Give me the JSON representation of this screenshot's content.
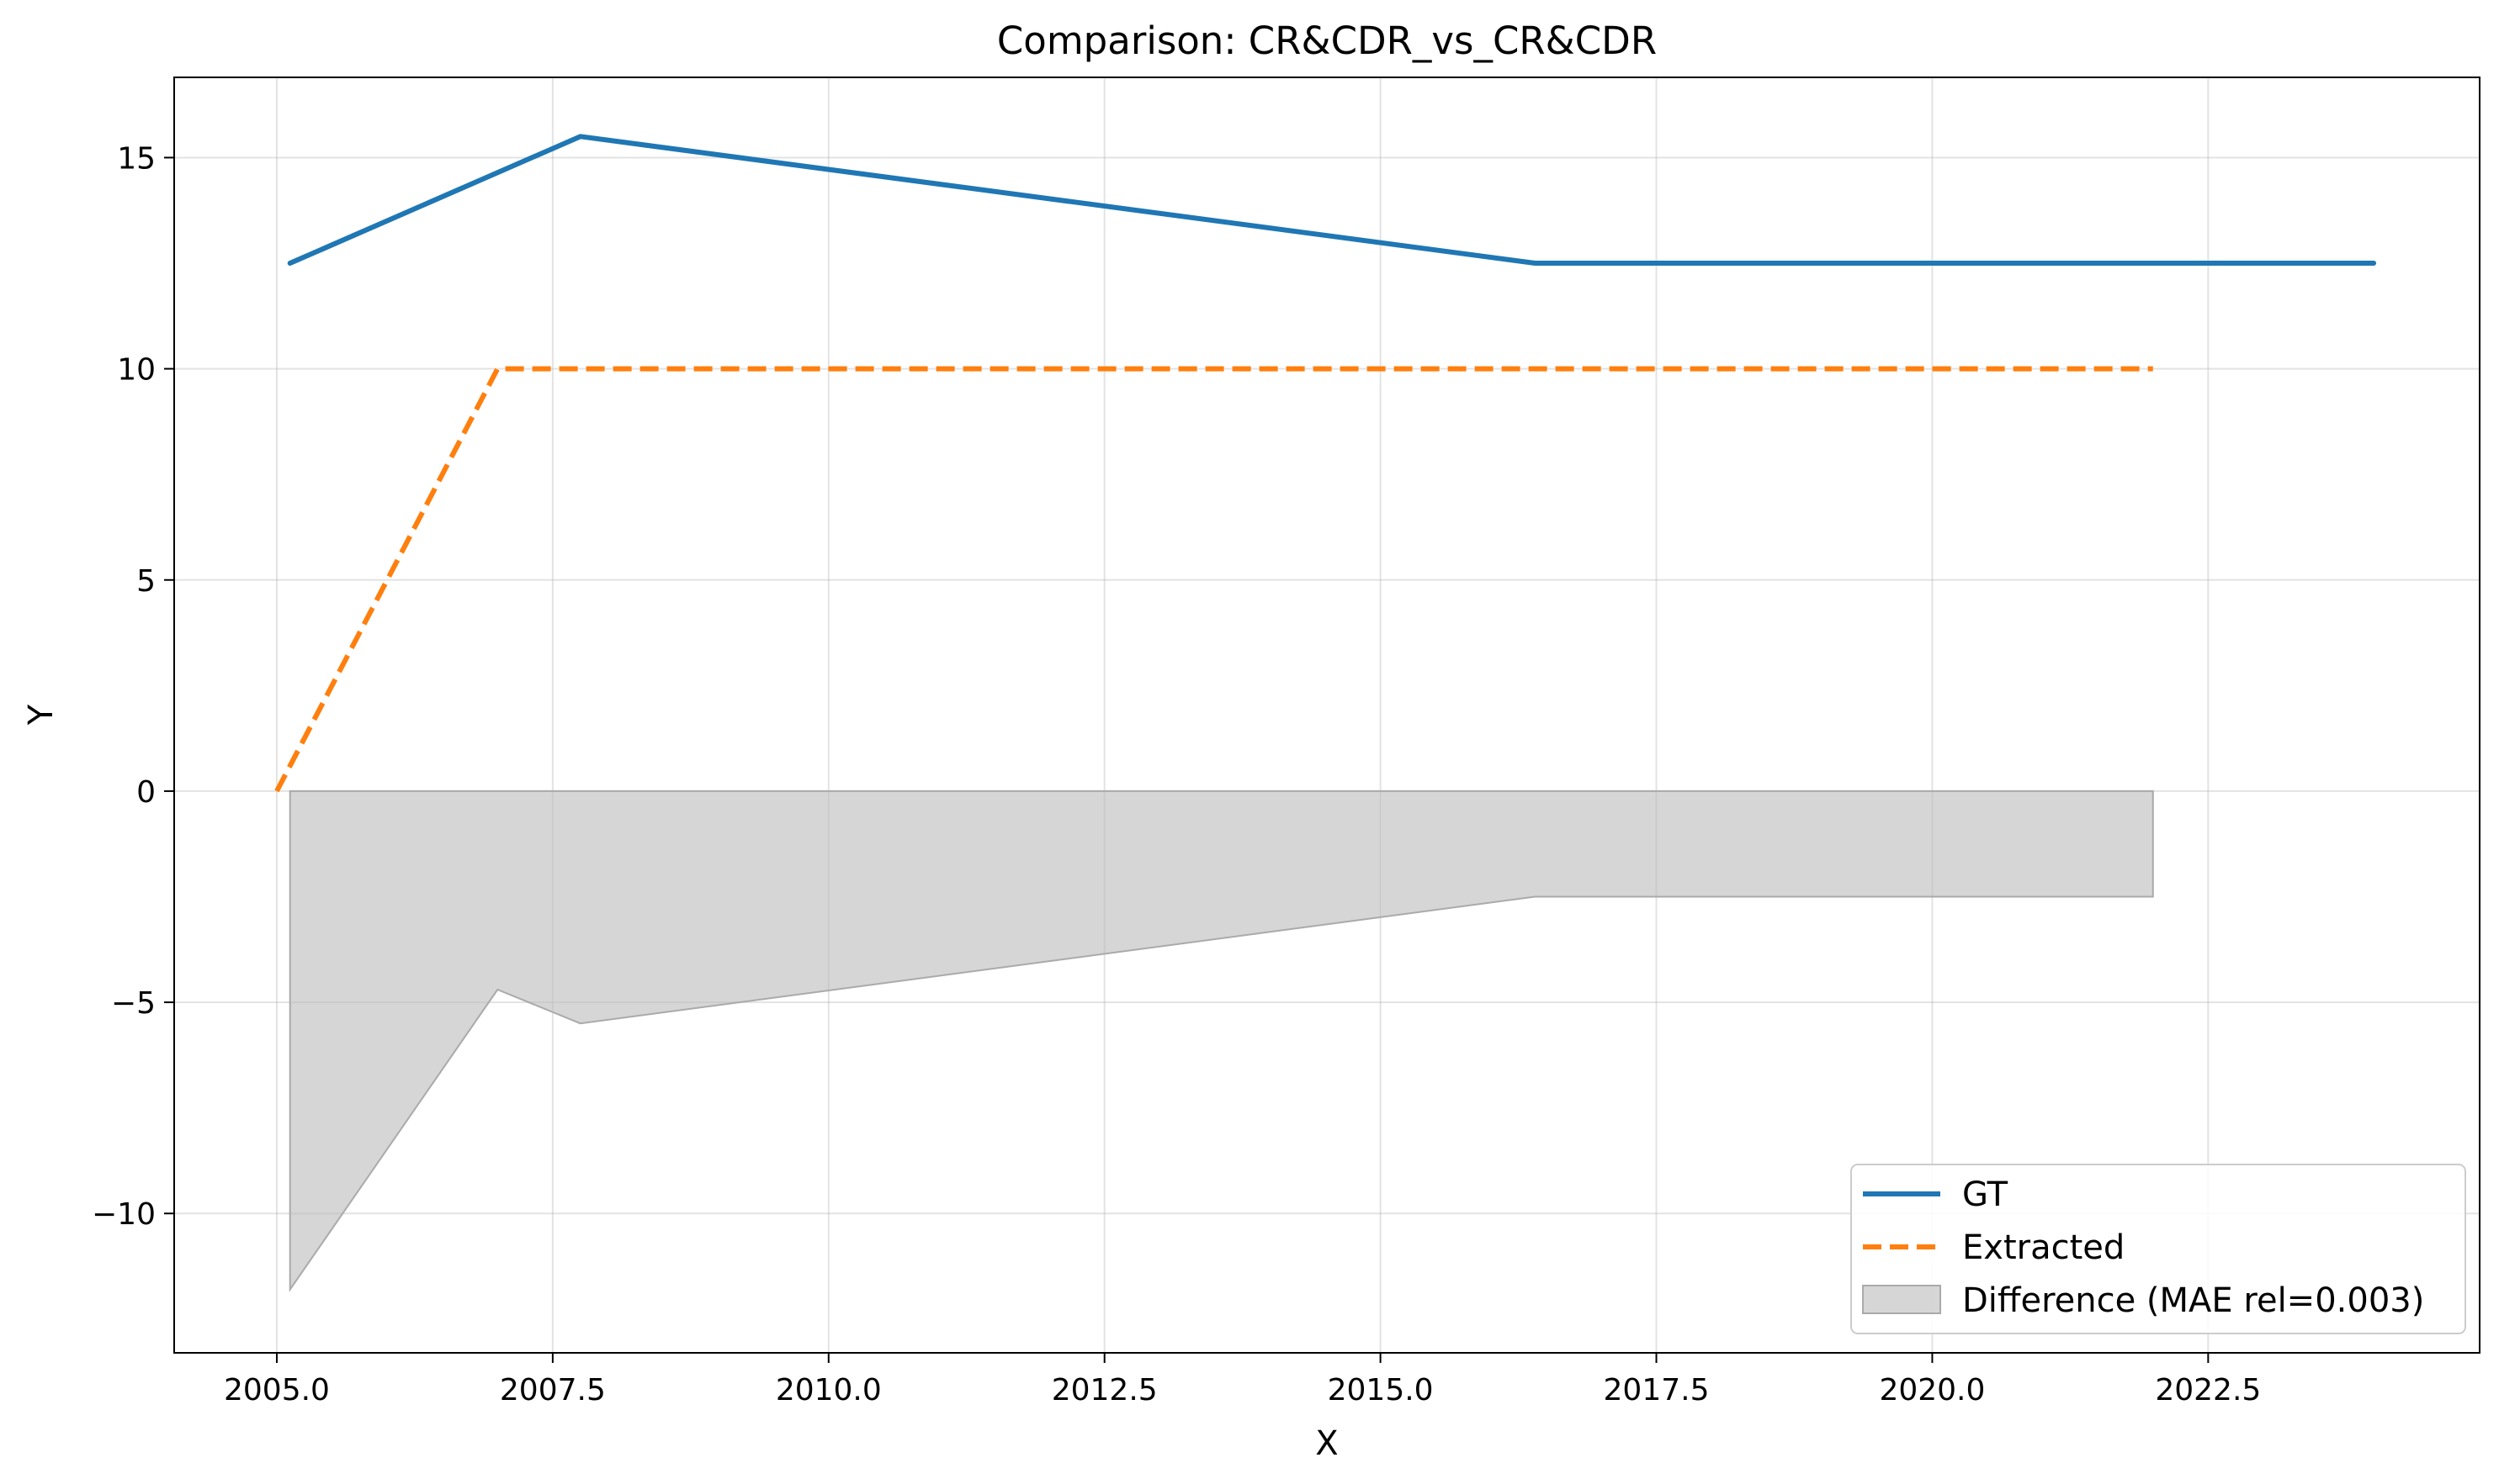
{
  "chart_data": {
    "type": "line",
    "title": "Comparison: CR&CDR_vs_CR&CDR",
    "xlabel": "X",
    "ylabel": "Y",
    "xlim": [
      2004.07,
      2024.96
    ],
    "ylim": [
      -13.3,
      16.9
    ],
    "xticks": [
      2005.0,
      2007.5,
      2010.0,
      2012.5,
      2015.0,
      2017.5,
      2020.0,
      2022.5
    ],
    "xtick_labels": [
      "2005.0",
      "2007.5",
      "2010.0",
      "2012.5",
      "2015.0",
      "2017.5",
      "2020.0",
      "2022.5"
    ],
    "yticks": [
      15,
      10,
      5,
      0,
      -5,
      -10
    ],
    "ytick_labels": [
      "15",
      "10",
      "5",
      "0",
      "−5",
      "−10"
    ],
    "grid": true,
    "legend_position": "lower-right",
    "series": [
      {
        "name": "GT",
        "style": "solid",
        "color": "#1f77b4",
        "points": [
          [
            2005.12,
            12.5
          ],
          [
            2007.75,
            15.5
          ],
          [
            2016.4,
            12.5
          ],
          [
            2024.0,
            12.5
          ]
        ]
      },
      {
        "name": "Extracted",
        "style": "dashed",
        "color": "#ff7f0e",
        "points": [
          [
            2005.0,
            0.0
          ],
          [
            2007.0,
            10.0
          ],
          [
            2022.0,
            10.0
          ]
        ]
      }
    ],
    "difference": {
      "name": "Difference (MAE rel=0.003)",
      "color": "#bbbbbb",
      "points": [
        [
          2005.12,
          -11.8
        ],
        [
          2007.0,
          -4.7
        ],
        [
          2007.75,
          -5.5
        ],
        [
          2016.4,
          -2.5
        ],
        [
          2022.0,
          -2.5
        ]
      ]
    }
  }
}
